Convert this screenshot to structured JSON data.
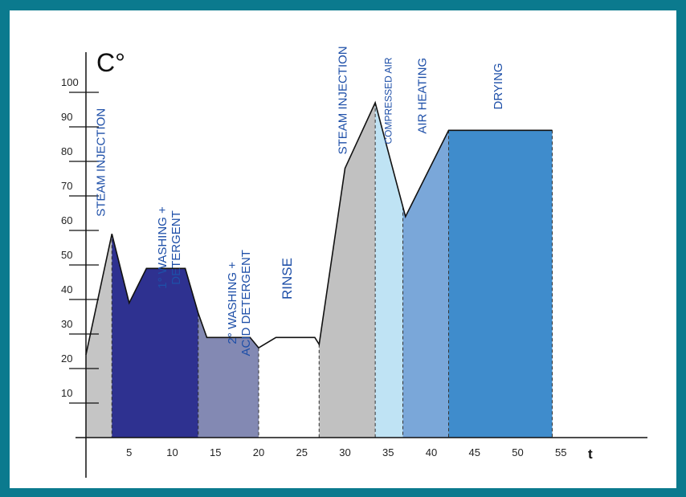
{
  "chart_data": {
    "type": "area",
    "ylabel": "C°",
    "xlabel": "t",
    "yticks": [
      "10",
      "20",
      "30",
      "40",
      "50",
      "60",
      "70",
      "80",
      "90",
      "100"
    ],
    "xticks": [
      "5",
      "10",
      "15",
      "20",
      "25",
      "30",
      "35",
      "40",
      "45",
      "50",
      "55"
    ],
    "xlim": [
      0,
      64
    ],
    "ylim": [
      0,
      100
    ],
    "profile": [
      {
        "t": 0,
        "temp": 24
      },
      {
        "t": 3,
        "temp": 59
      },
      {
        "t": 5,
        "temp": 39
      },
      {
        "t": 7,
        "temp": 49
      },
      {
        "t": 11.5,
        "temp": 49
      },
      {
        "t": 13,
        "temp": 36
      },
      {
        "t": 14,
        "temp": 29
      },
      {
        "t": 19,
        "temp": 29
      },
      {
        "t": 20,
        "temp": 26
      },
      {
        "t": 22,
        "temp": 29
      },
      {
        "t": 26.5,
        "temp": 29
      },
      {
        "t": 27,
        "temp": 27
      },
      {
        "t": 30,
        "temp": 78
      },
      {
        "t": 33.5,
        "temp": 97
      },
      {
        "t": 37,
        "temp": 64
      },
      {
        "t": 42,
        "temp": 89
      },
      {
        "t": 54,
        "temp": 89
      }
    ],
    "phases": [
      {
        "label": "STEAM INJECTION",
        "start": 0,
        "end": 3,
        "color": "#c5c5c5"
      },
      {
        "label": "1° WASHING + DETERGENT",
        "start": 3,
        "end": 13,
        "color": "#2e3190"
      },
      {
        "label": "2° WASHING + ACID DETERGENT",
        "start": 13,
        "end": 20,
        "color": "#8389b3"
      },
      {
        "label": "RINSE",
        "start": 20,
        "end": 27,
        "color": "#ffffff"
      },
      {
        "label": "STEAM INJECTION",
        "start": 27,
        "end": 33.5,
        "color": "#c1c1c1"
      },
      {
        "label": "COMPRESSED AIR",
        "start": 33.5,
        "end": 36.7,
        "color": "#bfe3f4"
      },
      {
        "label": "AIR HEATING",
        "start": 36.7,
        "end": 42,
        "color": "#7aa7d9"
      },
      {
        "label": "DRYING",
        "start": 42,
        "end": 54,
        "color": "#3f8ccc"
      }
    ]
  }
}
